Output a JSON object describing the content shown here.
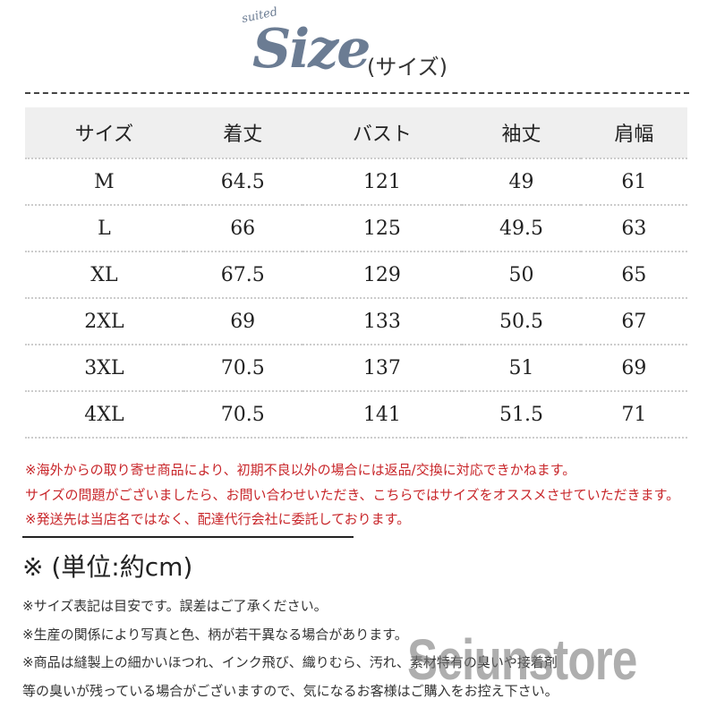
{
  "header": {
    "small_label": "suited",
    "title": "Size",
    "subtitle": "(サイズ)"
  },
  "table": {
    "headers": [
      "サイズ",
      "着丈",
      "バスト",
      "袖丈",
      "肩幅"
    ],
    "rows": [
      [
        "M",
        "64.5",
        "121",
        "49",
        "61"
      ],
      [
        "L",
        "66",
        "125",
        "49.5",
        "63"
      ],
      [
        "XL",
        "67.5",
        "129",
        "50",
        "65"
      ],
      [
        "2XL",
        "69",
        "133",
        "50.5",
        "67"
      ],
      [
        "3XL",
        "70.5",
        "137",
        "51",
        "69"
      ],
      [
        "4XL",
        "70.5",
        "141",
        "51.5",
        "71"
      ]
    ]
  },
  "warnings": [
    "※海外からの取り寄せ商品により、初期不良以外の場合には返品/交換に対応できかねます。",
    "サイズの問題がございましたら、お問い合わせいただき、こちらではサイズをオススメさせていただきます。",
    "※発送先は当店名ではなく、配達代行会社に委託しております。"
  ],
  "unit": "※ (単位:約cm)",
  "notes": [
    "※サイズ表記は目安です。誤差はご了承ください。",
    "※生産の関係により写真と色、柄が若干異なる場合があります。",
    "※商品は縫製上の細かいほつれ、インク飛び、織りむら、汚れ、素材特有の臭いや接着剤",
    "等の臭いが残っている場合がございますので、気になるお客様はご購入をお控え下さい。"
  ],
  "watermark": "Seiunstore",
  "colors": {
    "title": "#6b7c93",
    "warning": "#c8262a",
    "header_bg": "#efefef"
  }
}
